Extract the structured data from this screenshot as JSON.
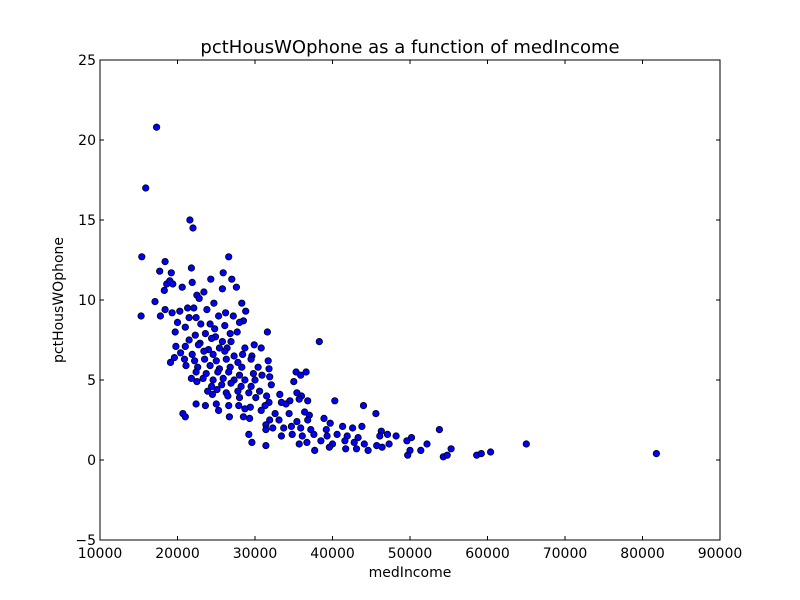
{
  "chart_data": {
    "type": "scatter",
    "title": "pctHousWOphone as a function of medIncome",
    "xlabel": "medIncome",
    "ylabel": "pctHousWOphone",
    "xlim": [
      10000,
      90000
    ],
    "ylim": [
      -5,
      25
    ],
    "xticks": [
      "10000",
      "20000",
      "30000",
      "40000",
      "50000",
      "60000",
      "70000",
      "80000",
      "90000"
    ],
    "yticks": [
      "−5",
      "0",
      "5",
      "10",
      "15",
      "20",
      "25"
    ],
    "xtick_values": [
      10000,
      20000,
      30000,
      40000,
      50000,
      60000,
      70000,
      80000,
      90000
    ],
    "ytick_values": [
      -5,
      0,
      5,
      10,
      15,
      20,
      25
    ],
    "marker_fill": "#0000ff",
    "marker_edge": "#000000",
    "points": [
      [
        17300,
        20.8
      ],
      [
        15900,
        17.0
      ],
      [
        21600,
        15.0
      ],
      [
        22000,
        14.5
      ],
      [
        15400,
        12.7
      ],
      [
        26600,
        12.7
      ],
      [
        18400,
        12.4
      ],
      [
        17700,
        11.8
      ],
      [
        21800,
        12.0
      ],
      [
        19200,
        11.7
      ],
      [
        25900,
        11.7
      ],
      [
        24300,
        11.3
      ],
      [
        27000,
        11.3
      ],
      [
        18600,
        11.0
      ],
      [
        19000,
        11.2
      ],
      [
        21900,
        11.1
      ],
      [
        18300,
        10.6
      ],
      [
        19400,
        11.0
      ],
      [
        20600,
        10.8
      ],
      [
        22500,
        10.3
      ],
      [
        23400,
        10.5
      ],
      [
        25800,
        10.7
      ],
      [
        27600,
        10.8
      ],
      [
        22800,
        10.1
      ],
      [
        17100,
        9.9
      ],
      [
        24700,
        9.8
      ],
      [
        28300,
        9.8
      ],
      [
        21300,
        9.5
      ],
      [
        15300,
        9.0
      ],
      [
        17800,
        9.0
      ],
      [
        19300,
        9.2
      ],
      [
        20300,
        9.3
      ],
      [
        22100,
        9.5
      ],
      [
        23800,
        9.4
      ],
      [
        26200,
        9.2
      ],
      [
        28800,
        9.3
      ],
      [
        18400,
        9.4
      ],
      [
        21500,
        8.9
      ],
      [
        22400,
        8.9
      ],
      [
        24200,
        8.5
      ],
      [
        25300,
        9.0
      ],
      [
        27200,
        9.0
      ],
      [
        28500,
        8.7
      ],
      [
        20000,
        8.6
      ],
      [
        21000,
        8.3
      ],
      [
        23000,
        8.5
      ],
      [
        24800,
        8.2
      ],
      [
        26100,
        8.4
      ],
      [
        28000,
        8.6
      ],
      [
        31600,
        8.0
      ],
      [
        19700,
        8.0
      ],
      [
        22300,
        7.8
      ],
      [
        23600,
        7.9
      ],
      [
        24900,
        7.7
      ],
      [
        26800,
        7.9
      ],
      [
        27700,
        8.0
      ],
      [
        21500,
        7.5
      ],
      [
        22900,
        7.3
      ],
      [
        24400,
        7.6
      ],
      [
        25800,
        7.4
      ],
      [
        26900,
        7.4
      ],
      [
        38300,
        7.4
      ],
      [
        19800,
        7.1
      ],
      [
        21000,
        7.1
      ],
      [
        22700,
        7.2
      ],
      [
        24000,
        6.9
      ],
      [
        25400,
        7.0
      ],
      [
        26400,
        7.0
      ],
      [
        28700,
        7.0
      ],
      [
        29900,
        7.2
      ],
      [
        30800,
        7.0
      ],
      [
        20400,
        6.7
      ],
      [
        21900,
        6.6
      ],
      [
        23400,
        6.8
      ],
      [
        24600,
        6.6
      ],
      [
        26100,
        6.8
      ],
      [
        27300,
        6.5
      ],
      [
        28400,
        6.6
      ],
      [
        29600,
        6.5
      ],
      [
        19600,
        6.4
      ],
      [
        20900,
        6.3
      ],
      [
        22200,
        6.2
      ],
      [
        23500,
        6.3
      ],
      [
        25000,
        6.2
      ],
      [
        26300,
        6.3
      ],
      [
        27800,
        6.1
      ],
      [
        29500,
        6.3
      ],
      [
        31700,
        6.2
      ],
      [
        19100,
        6.1
      ],
      [
        21100,
        5.9
      ],
      [
        22600,
        5.8
      ],
      [
        24200,
        5.9
      ],
      [
        25400,
        5.7
      ],
      [
        26800,
        5.8
      ],
      [
        28300,
        5.8
      ],
      [
        30400,
        5.8
      ],
      [
        31800,
        5.7
      ],
      [
        22400,
        5.5
      ],
      [
        23700,
        5.4
      ],
      [
        25200,
        5.5
      ],
      [
        26600,
        5.5
      ],
      [
        28000,
        5.3
      ],
      [
        29800,
        5.4
      ],
      [
        30900,
        5.3
      ],
      [
        35300,
        5.5
      ],
      [
        35900,
        5.3
      ],
      [
        36600,
        5.5
      ],
      [
        21800,
        5.1
      ],
      [
        23300,
        5.1
      ],
      [
        24600,
        5.0
      ],
      [
        25900,
        5.1
      ],
      [
        27300,
        5.0
      ],
      [
        28700,
        5.0
      ],
      [
        30000,
        5.0
      ],
      [
        31900,
        5.2
      ],
      [
        22500,
        4.9
      ],
      [
        24400,
        4.6
      ],
      [
        25700,
        4.7
      ],
      [
        26900,
        4.8
      ],
      [
        28200,
        4.6
      ],
      [
        29500,
        4.6
      ],
      [
        32100,
        4.7
      ],
      [
        35000,
        4.9
      ],
      [
        23900,
        4.3
      ],
      [
        25100,
        4.4
      ],
      [
        26300,
        4.2
      ],
      [
        27800,
        4.3
      ],
      [
        29200,
        4.2
      ],
      [
        30600,
        4.3
      ],
      [
        31500,
        4.0
      ],
      [
        33200,
        4.1
      ],
      [
        35400,
        4.2
      ],
      [
        36000,
        4.0
      ],
      [
        24500,
        4.1
      ],
      [
        26500,
        4.0
      ],
      [
        28000,
        3.9
      ],
      [
        30100,
        3.9
      ],
      [
        31800,
        3.6
      ],
      [
        33400,
        3.6
      ],
      [
        34500,
        3.7
      ],
      [
        35700,
        3.8
      ],
      [
        36800,
        3.7
      ],
      [
        40300,
        3.7
      ],
      [
        22400,
        3.5
      ],
      [
        23600,
        3.4
      ],
      [
        25000,
        3.5
      ],
      [
        26600,
        3.4
      ],
      [
        27900,
        3.4
      ],
      [
        29400,
        3.3
      ],
      [
        31300,
        3.4
      ],
      [
        34000,
        3.5
      ],
      [
        44000,
        3.4
      ],
      [
        25300,
        3.1
      ],
      [
        28700,
        3.2
      ],
      [
        30800,
        3.1
      ],
      [
        32600,
        2.9
      ],
      [
        34400,
        2.9
      ],
      [
        36400,
        3.0
      ],
      [
        37000,
        2.8
      ],
      [
        45600,
        2.9
      ],
      [
        20700,
        2.9
      ],
      [
        21000,
        2.7
      ],
      [
        26700,
        2.7
      ],
      [
        28500,
        2.7
      ],
      [
        29300,
        2.6
      ],
      [
        31900,
        2.5
      ],
      [
        33100,
        2.5
      ],
      [
        35400,
        2.4
      ],
      [
        36800,
        2.5
      ],
      [
        38900,
        2.6
      ],
      [
        39700,
        2.3
      ],
      [
        31400,
        2.2
      ],
      [
        32300,
        2.0
      ],
      [
        33700,
        2.0
      ],
      [
        34700,
        2.1
      ],
      [
        35900,
        2.0
      ],
      [
        37200,
        1.9
      ],
      [
        39200,
        1.9
      ],
      [
        41300,
        2.1
      ],
      [
        42600,
        2.0
      ],
      [
        43800,
        2.1
      ],
      [
        46300,
        1.8
      ],
      [
        29200,
        1.6
      ],
      [
        31400,
        1.9
      ],
      [
        33400,
        1.5
      ],
      [
        34800,
        1.6
      ],
      [
        36100,
        1.5
      ],
      [
        37600,
        1.6
      ],
      [
        39300,
        1.5
      ],
      [
        40600,
        1.6
      ],
      [
        41900,
        1.5
      ],
      [
        43300,
        1.4
      ],
      [
        46100,
        1.5
      ],
      [
        47100,
        1.6
      ],
      [
        48200,
        1.5
      ],
      [
        50200,
        1.4
      ],
      [
        53800,
        1.9
      ],
      [
        29600,
        1.1
      ],
      [
        31400,
        0.9
      ],
      [
        35700,
        1.0
      ],
      [
        36700,
        1.1
      ],
      [
        38500,
        1.2
      ],
      [
        40000,
        1.0
      ],
      [
        41600,
        1.2
      ],
      [
        42800,
        1.1
      ],
      [
        44100,
        1.0
      ],
      [
        45700,
        0.9
      ],
      [
        47300,
        1.0
      ],
      [
        49600,
        1.2
      ],
      [
        52200,
        1.0
      ],
      [
        37700,
        0.6
      ],
      [
        39600,
        0.8
      ],
      [
        41700,
        0.7
      ],
      [
        43100,
        0.7
      ],
      [
        44600,
        0.6
      ],
      [
        46400,
        0.8
      ],
      [
        50000,
        0.6
      ],
      [
        51400,
        0.6
      ],
      [
        55300,
        0.7
      ],
      [
        49700,
        0.3
      ],
      [
        54300,
        0.2
      ],
      [
        54800,
        0.3
      ],
      [
        58600,
        0.3
      ],
      [
        59200,
        0.4
      ],
      [
        60400,
        0.5
      ],
      [
        65000,
        1.0
      ],
      [
        81800,
        0.4
      ]
    ]
  }
}
